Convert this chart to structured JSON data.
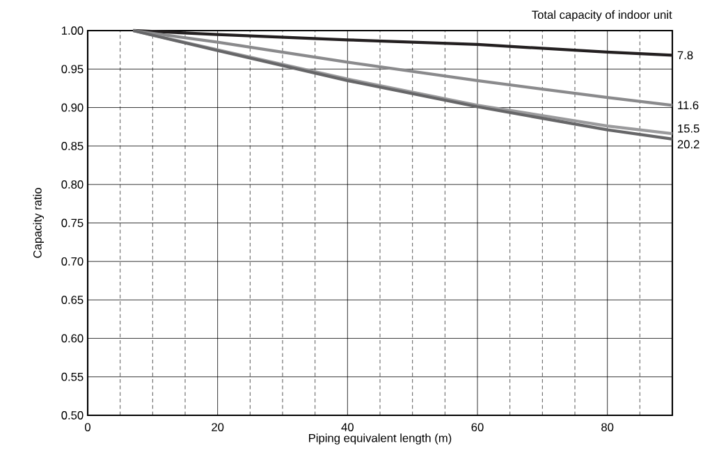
{
  "chart_data": {
    "type": "line",
    "xlabel": "Piping equivalent length (m)",
    "ylabel": "Capacity ratio",
    "legend_title": "Total capacity of indoor unit",
    "legend": false,
    "grid": true,
    "marker": "none",
    "line_style": "solid",
    "xlim": [
      0,
      90
    ],
    "ylim": [
      0.5,
      1.0
    ],
    "xticks": [
      0,
      {
        "value": 5,
        "label": null
      },
      {
        "value": 10,
        "label": null
      },
      {
        "value": 15,
        "label": null
      },
      20,
      {
        "value": 25,
        "label": null
      },
      {
        "value": 30,
        "label": null
      },
      {
        "value": 35,
        "label": null
      },
      40,
      {
        "value": 45,
        "label": null
      },
      {
        "value": 50,
        "label": null
      },
      {
        "value": 55,
        "label": null
      },
      60,
      {
        "value": 65,
        "label": null
      },
      {
        "value": 70,
        "label": null
      },
      {
        "value": 75,
        "label": null
      },
      80,
      {
        "value": 85,
        "label": null
      }
    ],
    "yticks": [
      {
        "value": 0.5,
        "label": "0.50"
      },
      {
        "value": 0.55,
        "label": "0.55"
      },
      {
        "value": 0.6,
        "label": "0.60"
      },
      {
        "value": 0.65,
        "label": "0.65"
      },
      {
        "value": 0.7,
        "label": "0.70"
      },
      {
        "value": 0.75,
        "label": "0.75"
      },
      {
        "value": 0.8,
        "label": "0.80"
      },
      {
        "value": 0.85,
        "label": "0.85"
      },
      {
        "value": 0.9,
        "label": "0.90"
      },
      {
        "value": 0.95,
        "label": "0.95"
      },
      {
        "value": 1.0,
        "label": "1.00"
      }
    ],
    "x": [
      7,
      20,
      40,
      60,
      80,
      90
    ],
    "series": [
      {
        "name": "7.8",
        "color": "#231f20",
        "values": [
          1.0,
          0.995,
          0.988,
          0.982,
          0.972,
          0.968
        ]
      },
      {
        "name": "11.6",
        "color": "#8a8a8c",
        "values": [
          1.0,
          0.985,
          0.959,
          0.935,
          0.913,
          0.903
        ]
      },
      {
        "name": "15.5",
        "color": "#9a9a9c",
        "values": [
          1.0,
          0.975,
          0.937,
          0.903,
          0.876,
          0.866
        ]
      },
      {
        "name": "20.2",
        "color": "#666668",
        "values": [
          1.0,
          0.974,
          0.935,
          0.901,
          0.871,
          0.859
        ]
      }
    ]
  }
}
